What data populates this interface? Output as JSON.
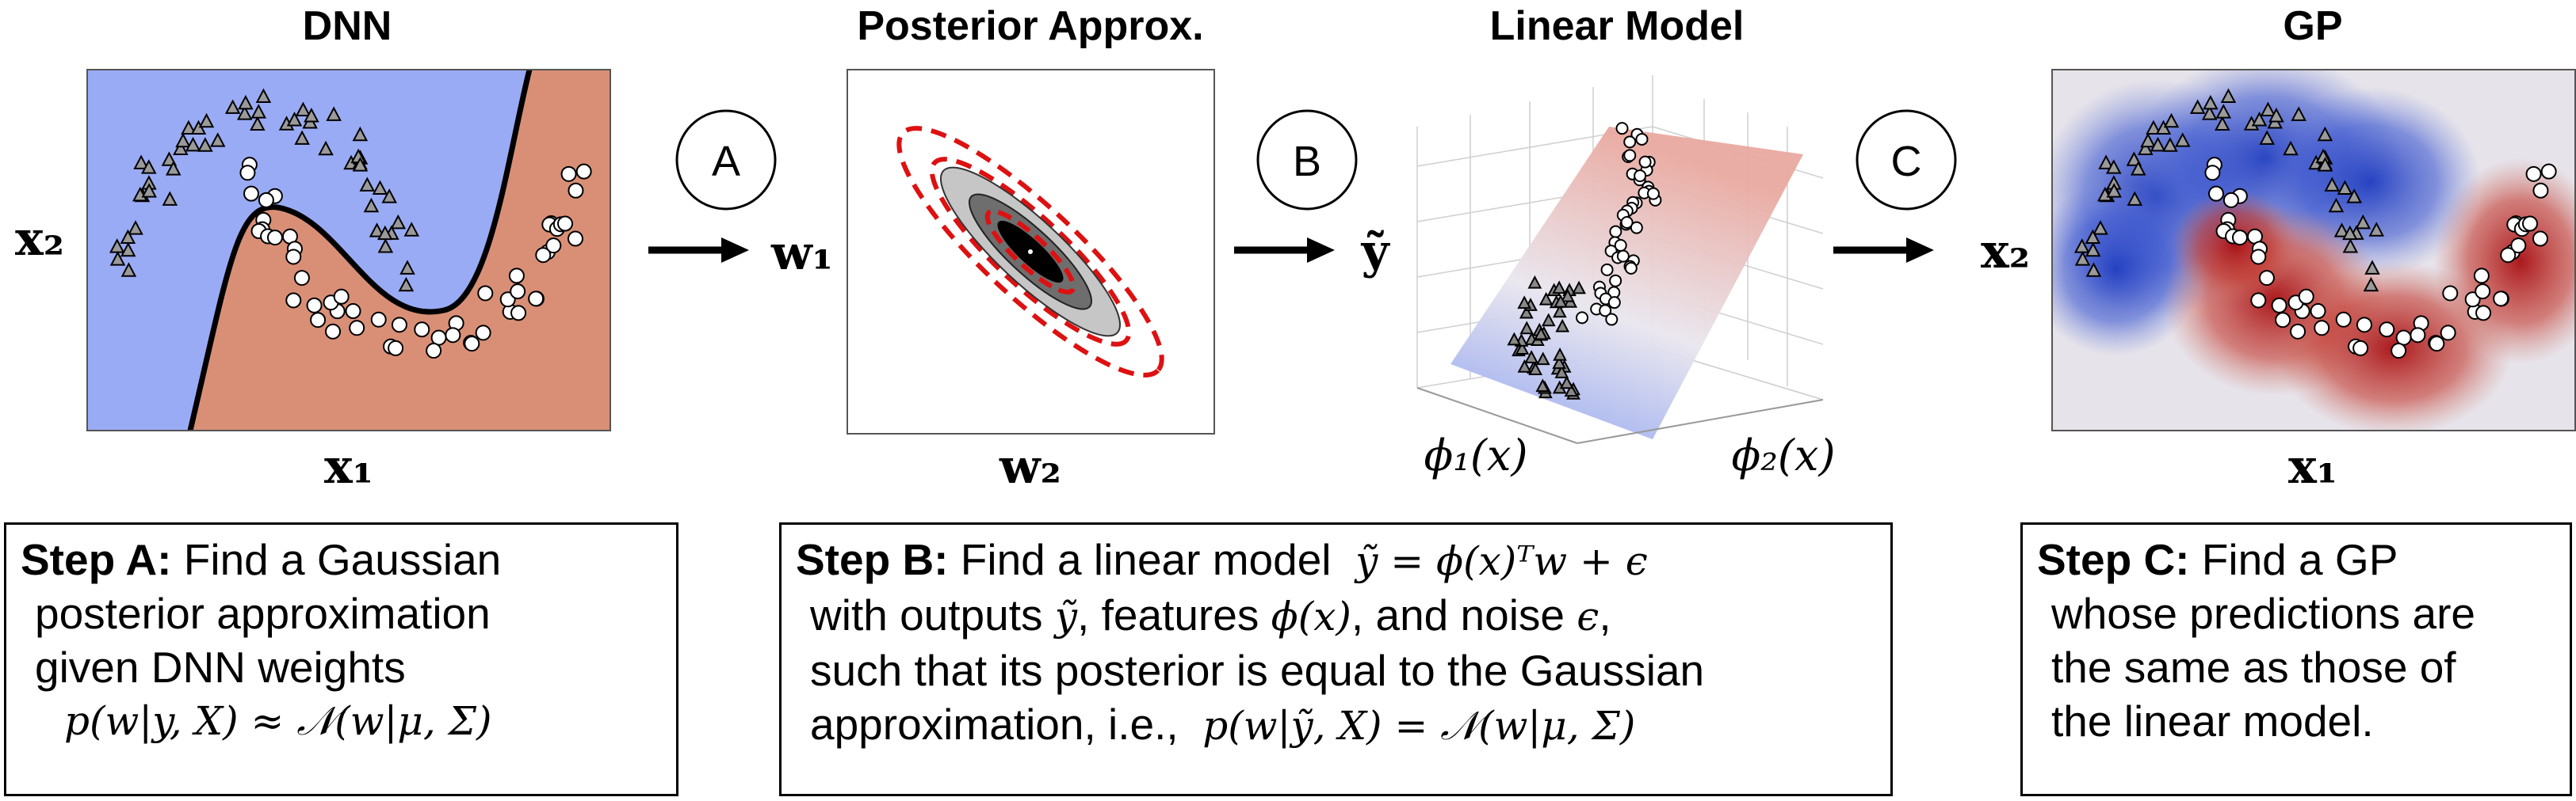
{
  "panels": {
    "dnn": {
      "title": "DNN",
      "xlabel": "x₁",
      "ylabel": "x₂"
    },
    "posterior": {
      "title": "Posterior Approx.",
      "xlabel": "w₂",
      "ylabel": "w₁"
    },
    "linear": {
      "title": "Linear Model",
      "ylabel": "ỹ",
      "xlabel1": "ϕ₁(x)",
      "xlabel2": "ϕ₂(x)"
    },
    "gp": {
      "title": "GP",
      "xlabel": "x₁",
      "ylabel": "x₂"
    }
  },
  "arrows": {
    "a": "A",
    "b": "B",
    "c": "C"
  },
  "steps": {
    "a": {
      "label": "Step A:",
      "line1": "Find a Gaussian",
      "line2": "posterior approximation",
      "line3": "given DNN weights",
      "formula": "p(w|y, X) ≈ 𝒩(w|μ, Σ)"
    },
    "b": {
      "label": "Step B:",
      "line1": "Find a linear model",
      "formula1": "ỹ = ϕ(x)ᵀw + ϵ",
      "line2a": "with outputs",
      "sym_y": "ỹ",
      "line2b": ", features",
      "sym_phi": "ϕ(x)",
      "line2c": ", and noise",
      "sym_eps": "ϵ",
      "line2d": ",",
      "line3": "such that its posterior is equal to the Gaussian",
      "line4": "approximation, i.e.,",
      "formula2": "p(w|ỹ, X) = 𝒩(w|μ, Σ)"
    },
    "c": {
      "label": "Step C:",
      "line1": "Find a GP",
      "line2": "whose predictions are",
      "line3": "the same as those of",
      "line4": "the linear model."
    }
  },
  "colors": {
    "dnn_class1": "#9aabf5",
    "dnn_class2": "#d98f76",
    "ellipse_dash": "#dd1111",
    "gp_blue": "#2840c0",
    "gp_red": "#b01515"
  }
}
